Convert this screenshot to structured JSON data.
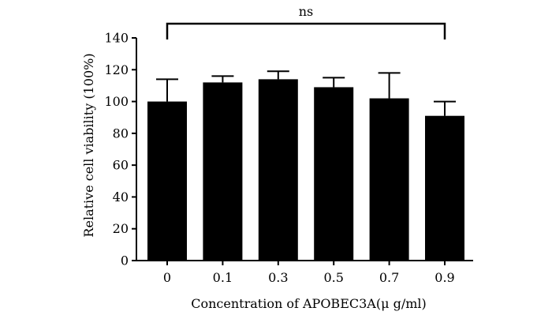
{
  "chart_data": {
    "type": "bar",
    "categories": [
      "0",
      "0.1",
      "0.3",
      "0.5",
      "0.7",
      "0.9"
    ],
    "values": [
      100,
      112,
      114,
      109,
      102,
      91
    ],
    "error_upper": [
      114,
      116,
      119,
      115,
      118,
      100
    ],
    "xlabel": "Concentration of APOBEC3A(μ g/ml)",
    "ylabel": "Relative cell viability (100%)",
    "ylim": [
      0,
      140
    ],
    "yticks": [
      0,
      20,
      40,
      60,
      80,
      100,
      120,
      140
    ],
    "grid": false,
    "bar_color": "#000000",
    "significance": {
      "label": "ns",
      "from_category": "0",
      "to_category": "0.9"
    }
  }
}
